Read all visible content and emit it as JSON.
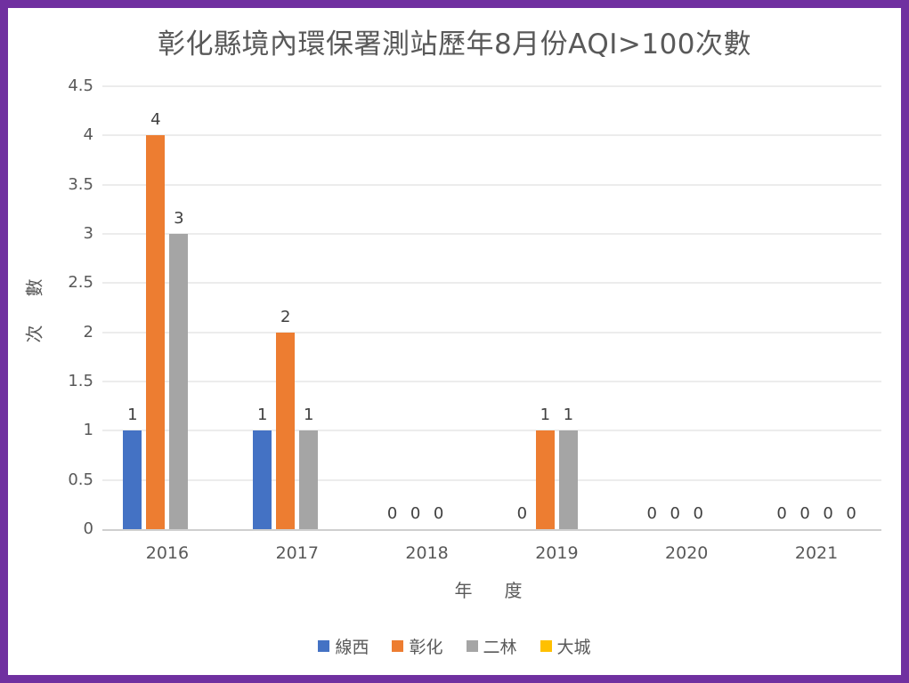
{
  "frame": {
    "border_color": "#7030A0",
    "background": "#FFFFFF"
  },
  "chart_data": {
    "type": "bar",
    "title": "彰化縣境內環保署測站歷年8月份AQI>100次數",
    "xlabel": "年　度",
    "ylabel": "次　數",
    "categories": [
      "2016",
      "2017",
      "2018",
      "2019",
      "2020",
      "2021"
    ],
    "series": [
      {
        "name": "線西",
        "color": "#4472C4",
        "values": [
          1,
          1,
          0,
          0,
          0,
          0
        ]
      },
      {
        "name": "彰化",
        "color": "#ED7D31",
        "values": [
          4,
          2,
          0,
          1,
          0,
          0
        ]
      },
      {
        "name": "二林",
        "color": "#A5A5A5",
        "values": [
          3,
          1,
          0,
          1,
          0,
          0
        ]
      },
      {
        "name": "大城",
        "color": "#FFC000",
        "values": [
          null,
          null,
          null,
          null,
          null,
          0
        ]
      }
    ],
    "ylim": [
      0,
      4.5
    ],
    "ytick_step": 0.5,
    "yticks": [
      "0",
      "0.5",
      "1",
      "1.5",
      "2",
      "2.5",
      "3",
      "3.5",
      "4",
      "4.5"
    ],
    "grid": true,
    "gridline_color": "#D9D9D9",
    "axis_line_color": "#CFCFCF",
    "text_color": "#595959",
    "data_label_color": "#404040",
    "legend_position": "bottom"
  }
}
